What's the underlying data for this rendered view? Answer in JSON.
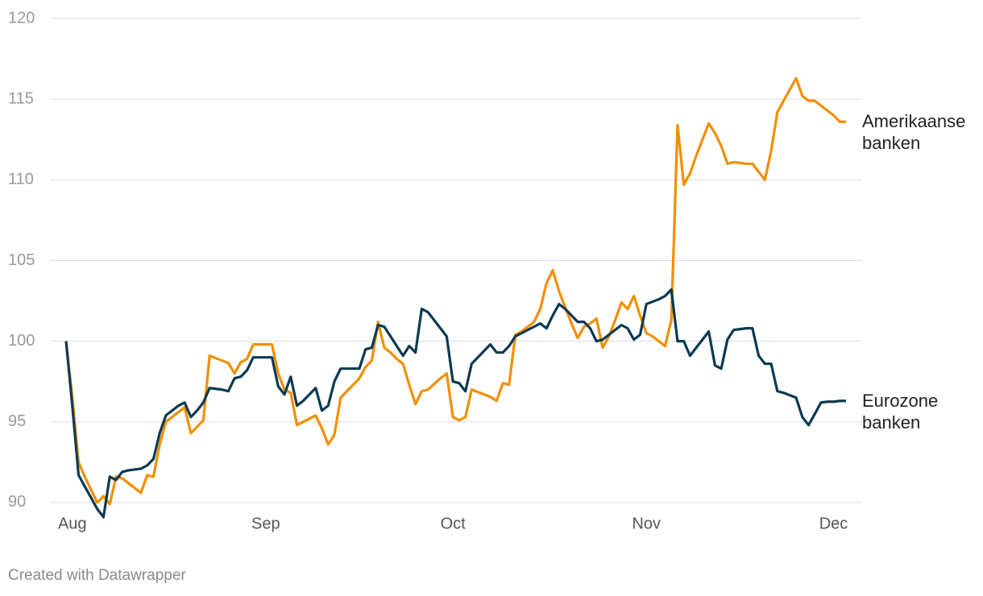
{
  "chart_data": {
    "type": "line",
    "categories": [
      null,
      "Aug",
      null,
      null,
      null,
      null,
      null,
      null,
      null,
      null,
      null,
      null,
      null,
      null,
      null,
      null,
      null,
      null,
      null,
      null,
      null,
      null,
      null,
      null,
      null,
      null,
      null,
      null,
      null,
      null,
      null,
      null,
      "Sep",
      null,
      null,
      null,
      null,
      null,
      null,
      null,
      null,
      null,
      null,
      null,
      null,
      null,
      null,
      null,
      null,
      null,
      null,
      null,
      null,
      null,
      null,
      null,
      null,
      null,
      null,
      null,
      null,
      null,
      "Oct",
      null,
      null,
      null,
      null,
      null,
      null,
      null,
      null,
      null,
      null,
      null,
      null,
      null,
      null,
      null,
      null,
      null,
      null,
      null,
      null,
      null,
      null,
      null,
      null,
      null,
      null,
      null,
      null,
      null,
      null,
      "Nov",
      null,
      null,
      null,
      null,
      null,
      null,
      null,
      null,
      null,
      null,
      null,
      null,
      null,
      null,
      null,
      null,
      null,
      null,
      null,
      null,
      null,
      null,
      null,
      null,
      null,
      null,
      null,
      null,
      null,
      "Dec",
      null,
      null
    ],
    "series": [
      {
        "name": "Amerikaanse banken",
        "color": "#f28f00",
        "values": [
          100,
          96.5,
          92.5,
          91.6,
          90.8,
          90.0,
          90.4,
          89.9,
          91.6,
          91.5,
          91.2,
          90.9,
          90.6,
          91.7,
          91.6,
          93.6,
          95.0,
          95.3,
          95.6,
          95.9,
          94.3,
          94.7,
          95.1,
          99.1,
          98.95,
          98.8,
          98.65,
          98.0,
          98.7,
          98.9,
          99.8,
          99.8,
          99.8,
          99.8,
          98.0,
          97.0,
          96.8,
          94.8,
          95.0,
          95.2,
          95.4,
          94.6,
          93.6,
          94.2,
          96.5,
          96.9,
          97.3,
          97.7,
          98.4,
          98.8,
          101.2,
          99.6,
          99.3,
          98.9,
          98.6,
          97.3,
          96.1,
          96.9,
          97.0,
          97.35,
          97.7,
          98.0,
          95.3,
          95.1,
          95.3,
          97.0,
          96.85,
          96.7,
          96.55,
          96.3,
          97.4,
          97.3,
          100.4,
          100.6,
          100.9,
          101.2,
          102.0,
          103.6,
          104.4,
          103.1,
          102.1,
          101.1,
          100.2,
          100.9,
          101.1,
          101.4,
          99.6,
          100.3,
          101.3,
          102.4,
          102.0,
          102.8,
          101.6,
          100.5,
          100.3,
          100.0,
          99.7,
          101.3,
          113.4,
          109.7,
          110.4,
          111.5,
          112.5,
          113.5,
          112.9,
          112.1,
          111.0,
          111.1,
          111.05,
          111.0,
          111.0,
          110.5,
          110.0,
          111.8,
          114.2,
          114.9,
          115.6,
          116.3,
          115.2,
          114.9,
          114.9,
          114.6,
          114.3,
          114.0,
          113.6,
          113.6
        ]
      },
      {
        "name": "Eurozone banken",
        "color": "#0b3a52",
        "values": [
          100,
          96,
          91.7,
          91.0,
          90.3,
          89.6,
          89.1,
          91.6,
          91.4,
          91.9,
          92.0,
          92.05,
          92.1,
          92.3,
          92.7,
          94.3,
          95.4,
          95.7,
          96.0,
          96.2,
          95.3,
          95.7,
          96.2,
          97.1,
          97.05,
          97.0,
          96.9,
          97.7,
          97.8,
          98.2,
          99.0,
          99.0,
          99.0,
          99.0,
          97.2,
          96.7,
          97.8,
          96.0,
          96.3,
          96.7,
          97.1,
          95.7,
          96.0,
          97.5,
          98.3,
          98.3,
          98.3,
          98.3,
          99.5,
          99.6,
          101.0,
          100.9,
          100.3,
          99.7,
          99.1,
          99.7,
          99.3,
          102.0,
          101.8,
          101.3,
          100.8,
          100.3,
          97.5,
          97.4,
          96.9,
          98.6,
          99.0,
          99.4,
          99.8,
          99.3,
          99.3,
          99.7,
          100.3,
          100.5,
          100.7,
          100.9,
          101.1,
          100.8,
          101.6,
          102.3,
          102.0,
          101.6,
          101.2,
          101.2,
          100.8,
          100.0,
          100.1,
          100.4,
          100.7,
          101.0,
          100.8,
          100.1,
          100.4,
          102.3,
          102.45,
          102.6,
          102.8,
          103.2,
          100.0,
          100.0,
          99.1,
          99.6,
          100.1,
          100.6,
          98.5,
          98.3,
          100.1,
          100.7,
          100.75,
          100.8,
          100.8,
          99.1,
          98.6,
          98.6,
          96.9,
          96.8,
          96.65,
          96.5,
          95.3,
          94.8,
          95.5,
          96.2,
          96.25,
          96.25,
          96.3,
          96.3
        ]
      }
    ],
    "ylim": [
      89,
      120
    ],
    "yticks": [
      90,
      95,
      100,
      105,
      110,
      115,
      120
    ],
    "grid": true,
    "source": "Created with Datawrapper"
  }
}
